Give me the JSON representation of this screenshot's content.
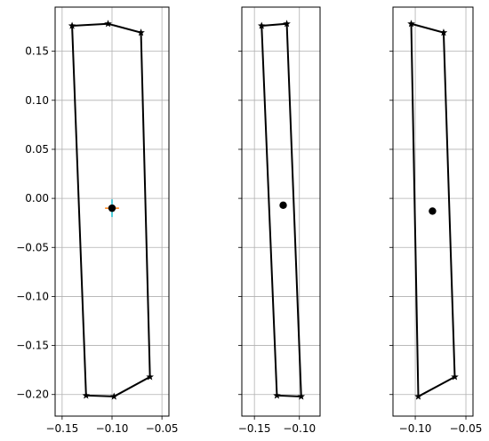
{
  "figure": {
    "background": "#ffffff"
  },
  "colors": {
    "polygon": "#000000",
    "grid": "#b0b0b0",
    "center_point": "#000000",
    "error_x": "#ff7f0e",
    "error_y": "#17becf"
  },
  "chart_data": [
    {
      "type": "scatter",
      "title": "",
      "xlabel": "",
      "ylabel": "",
      "xlim": [
        -0.157,
        -0.043
      ],
      "ylim": [
        -0.222,
        0.195
      ],
      "grid": true,
      "x_ticks": [
        -0.15,
        -0.1,
        -0.05
      ],
      "x_tick_labels": [
        "−0.15",
        "−0.10",
        "−0.05"
      ],
      "y_ticks": [
        -0.2,
        -0.15,
        -0.1,
        -0.05,
        0.0,
        0.05,
        0.1,
        0.15
      ],
      "y_tick_labels": [
        "−0.20",
        "−0.15",
        "−0.10",
        "−0.05",
        "0.00",
        "0.05",
        "0.10",
        "0.15"
      ],
      "polygon": {
        "marker": "star",
        "x": [
          -0.14,
          -0.104,
          -0.071,
          -0.062,
          -0.098,
          -0.126,
          -0.14
        ],
        "y": [
          0.176,
          0.178,
          0.169,
          -0.182,
          -0.202,
          -0.201,
          0.176
        ]
      },
      "center": {
        "x": -0.1,
        "y": -0.01,
        "xerr": 0.007,
        "yerr": 0.009
      }
    },
    {
      "type": "scatter",
      "title": "",
      "xlabel": "",
      "ylabel": "",
      "xlim": [
        -0.164,
        -0.077
      ],
      "ylim": [
        -0.222,
        0.195
      ],
      "grid": true,
      "x_ticks": [
        -0.15,
        -0.1
      ],
      "x_tick_labels": [
        "−0.15",
        "−0.10"
      ],
      "y_ticks": [
        -0.2,
        -0.15,
        -0.1,
        -0.05,
        0.0,
        0.05,
        0.1,
        0.15
      ],
      "y_tick_labels": [
        "",
        "",
        "",
        "",
        "",
        "",
        "",
        ""
      ],
      "polygon": {
        "marker": "star",
        "x": [
          -0.142,
          -0.114,
          -0.098,
          -0.125,
          -0.142
        ],
        "y": [
          0.176,
          0.178,
          -0.202,
          -0.201,
          0.176
        ]
      },
      "center": {
        "x": -0.118,
        "y": -0.007,
        "xerr": 0.002,
        "yerr": 0.003
      }
    },
    {
      "type": "scatter",
      "title": "",
      "xlabel": "",
      "ylabel": "",
      "xlim": [
        -0.122,
        -0.043
      ],
      "ylim": [
        -0.222,
        0.195
      ],
      "grid": true,
      "x_ticks": [
        -0.1,
        -0.05
      ],
      "x_tick_labels": [
        "−0.10",
        "−0.05"
      ],
      "y_ticks": [
        -0.2,
        -0.15,
        -0.1,
        -0.05,
        0.0,
        0.05,
        0.1,
        0.15
      ],
      "y_tick_labels": [
        "",
        "",
        "",
        "",
        "",
        "",
        "",
        ""
      ],
      "polygon": {
        "marker": "star",
        "x": [
          -0.104,
          -0.072,
          -0.061,
          -0.097,
          -0.104
        ],
        "y": [
          0.178,
          0.169,
          -0.182,
          -0.202,
          0.178
        ]
      },
      "center": {
        "x": -0.083,
        "y": -0.013,
        "xerr": 0.002,
        "yerr": 0.003
      }
    }
  ]
}
